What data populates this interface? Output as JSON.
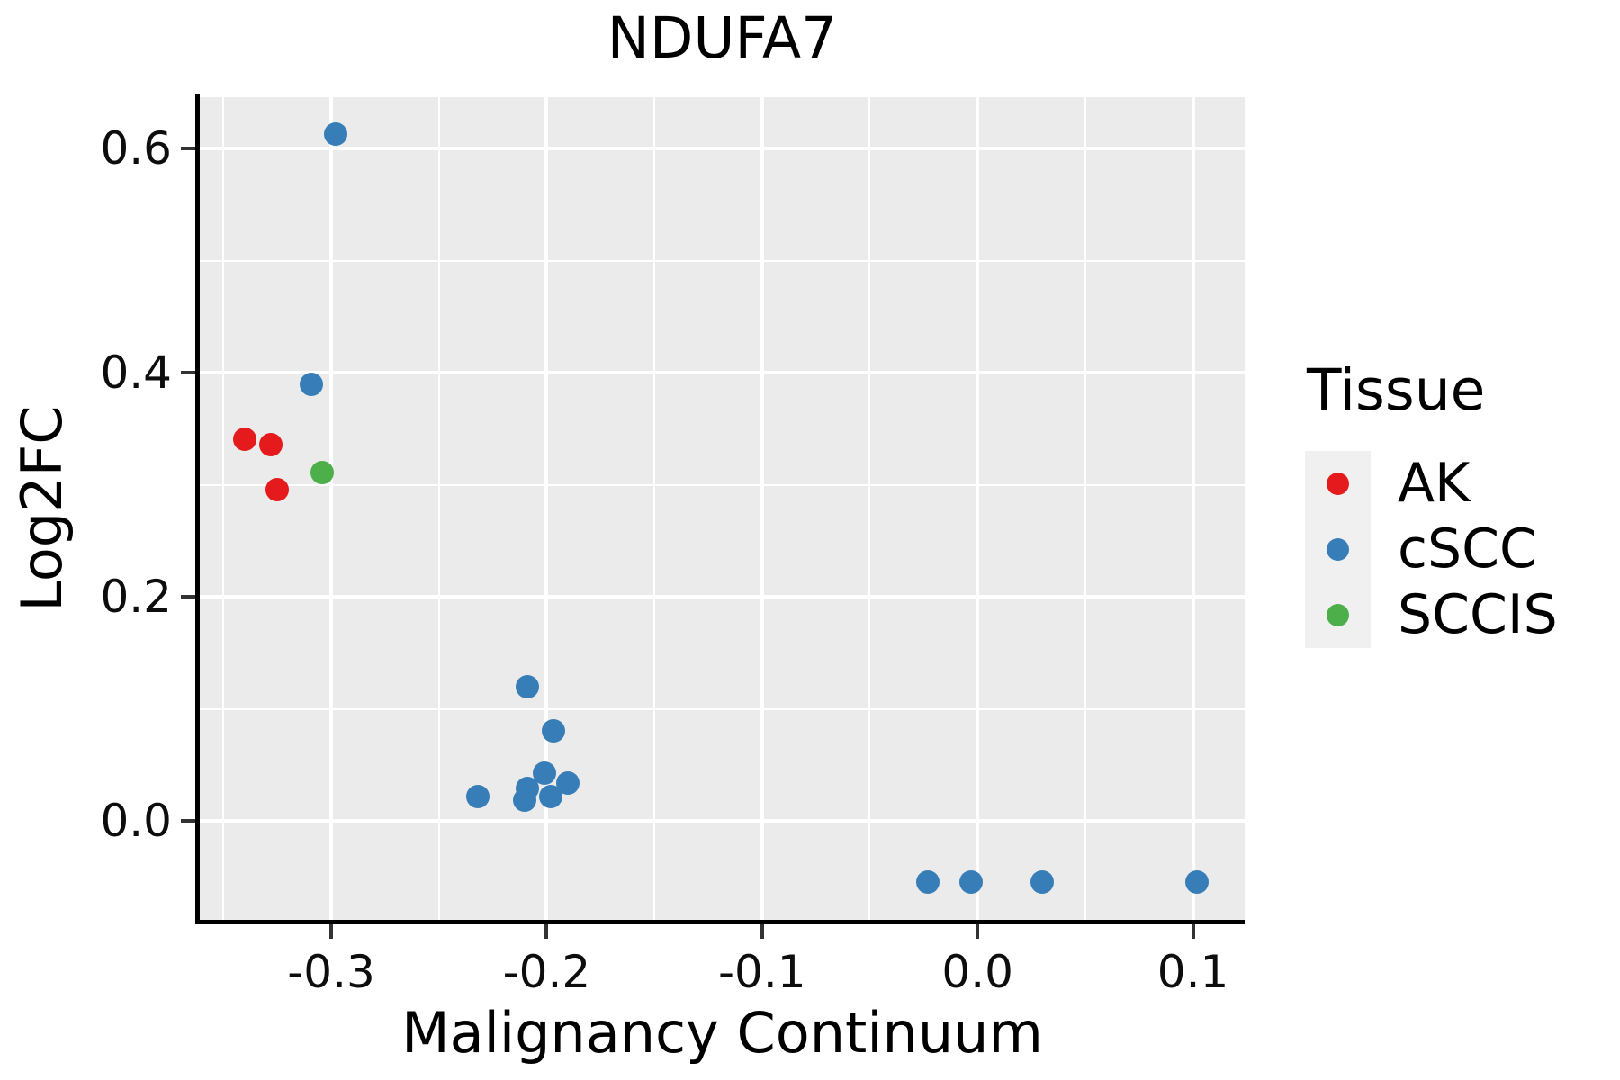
{
  "figure": {
    "title": "NDUFA7",
    "x_axis_label": "Malignancy Continuum",
    "y_axis_label": "Log2FC"
  },
  "legend": {
    "title": "Tissue",
    "position": "right",
    "items": [
      {
        "label": "AK",
        "color": "#E41A1C"
      },
      {
        "label": "cSCC",
        "color": "#377EB8"
      },
      {
        "label": "SCCIS",
        "color": "#4DAF4A"
      }
    ]
  },
  "chart_data": {
    "type": "scatter",
    "title": "NDUFA7",
    "xlabel": "Malignancy Continuum",
    "ylabel": "Log2FC",
    "xlim": [
      -0.361,
      0.124
    ],
    "ylim": [
      -0.088,
      0.646
    ],
    "grid": "white major and minor gridlines on gray panel",
    "legend_position": "right",
    "x_ticks": [
      {
        "value": -0.3,
        "label": "-0.3"
      },
      {
        "value": -0.2,
        "label": "-0.2"
      },
      {
        "value": -0.1,
        "label": "-0.1"
      },
      {
        "value": 0.0,
        "label": "0.0"
      },
      {
        "value": 0.1,
        "label": "0.1"
      }
    ],
    "y_ticks": [
      {
        "value": 0.6,
        "label": "0.6"
      },
      {
        "value": 0.4,
        "label": "0.4"
      },
      {
        "value": 0.2,
        "label": "0.2"
      },
      {
        "value": 0.0,
        "label": "0.0"
      }
    ],
    "x_minor": [
      -0.35,
      -0.25,
      -0.15,
      -0.05,
      0.05
    ],
    "y_minor": [
      0.1,
      0.3,
      0.5
    ],
    "series": [
      {
        "name": "AK",
        "color": "#E41A1C",
        "points": [
          [
            -0.34,
            0.341
          ],
          [
            -0.328,
            0.336
          ],
          [
            -0.325,
            0.296
          ]
        ]
      },
      {
        "name": "cSCC",
        "color": "#377EB8",
        "points": [
          [
            -0.298,
            0.613
          ],
          [
            -0.309,
            0.39
          ],
          [
            -0.209,
            0.12
          ],
          [
            -0.197,
            0.081
          ],
          [
            -0.232,
            0.022
          ],
          [
            -0.201,
            0.043
          ],
          [
            -0.209,
            0.029
          ],
          [
            -0.21,
            0.019
          ],
          [
            -0.198,
            0.022
          ],
          [
            -0.19,
            0.034
          ],
          [
            -0.023,
            -0.054
          ],
          [
            -0.003,
            -0.054
          ],
          [
            0.03,
            -0.054
          ],
          [
            0.102,
            -0.054
          ]
        ]
      },
      {
        "name": "SCCIS",
        "color": "#4DAF4A",
        "points": [
          [
            -0.304,
            0.311
          ]
        ]
      }
    ]
  },
  "colors": {
    "panel_background": "#EBEBEB",
    "gridline": "#FFFFFF",
    "axis_line": "#000000",
    "tick_mark": "#333333",
    "text": "#000000",
    "legend_key_background": "#F0F0F0"
  }
}
